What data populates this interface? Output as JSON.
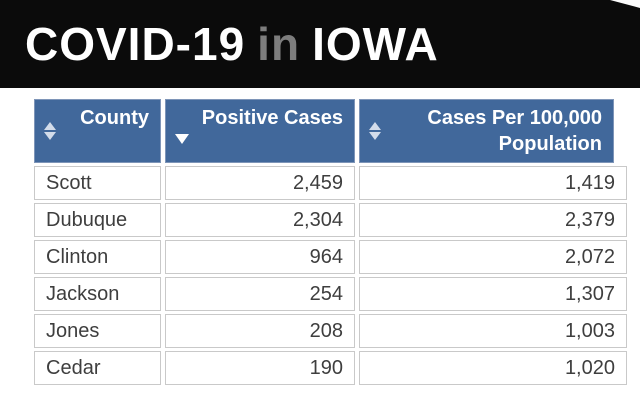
{
  "banner": {
    "part1": "COVID-19",
    "part2": "in",
    "part3": "IOWA"
  },
  "table": {
    "columns": [
      {
        "label": "County",
        "sort": "unsorted"
      },
      {
        "label": "Positive Cases",
        "sort": "descending"
      },
      {
        "label": "Cases Per 100,000 Population",
        "sort": "unsorted"
      }
    ],
    "rows": [
      {
        "county": "Scott",
        "positive_cases": "2,459",
        "cases_per_100k": "1,419"
      },
      {
        "county": "Dubuque",
        "positive_cases": "2,304",
        "cases_per_100k": "2,379"
      },
      {
        "county": "Clinton",
        "positive_cases": "964",
        "cases_per_100k": "2,072"
      },
      {
        "county": "Jackson",
        "positive_cases": "254",
        "cases_per_100k": "1,307"
      },
      {
        "county": "Jones",
        "positive_cases": "208",
        "cases_per_100k": "1,003"
      },
      {
        "county": "Cedar",
        "positive_cases": "190",
        "cases_per_100k": "1,020"
      }
    ]
  },
  "colors": {
    "banner_bg": "#0b0b0b",
    "banner_text": "#ffffff",
    "banner_muted": "#7d7d7d",
    "header_bg": "#41689b",
    "header_text": "#ffffff",
    "header_border": "#7e95b8",
    "row_bg": "#ffffff",
    "row_border": "#c9c9c9",
    "row_text": "#3e3e3e",
    "arrow_light": "#d3dcea",
    "arrow_active": "#ffffff"
  }
}
